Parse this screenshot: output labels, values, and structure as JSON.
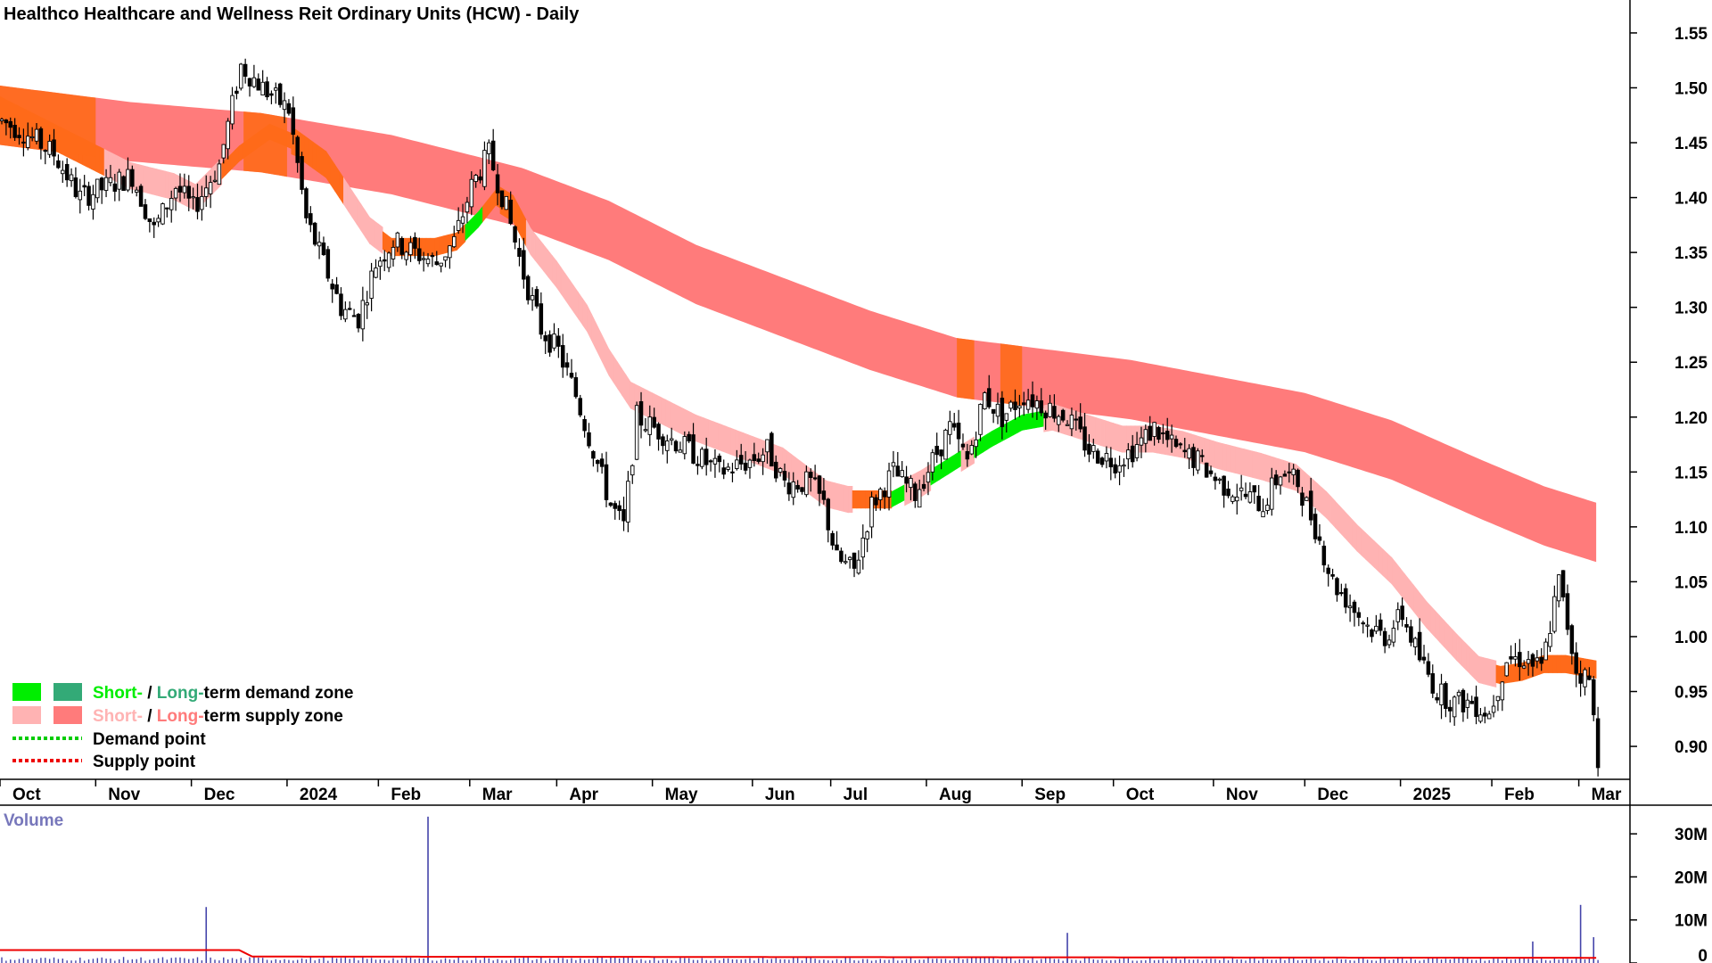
{
  "chart_data": {
    "type": "candlestick",
    "title": "Healthco Healthcare and Wellness Reit Ordinary Units (HCW) - Daily",
    "y_ticks": [
      "1.55",
      "1.50",
      "1.45",
      "1.40",
      "1.35",
      "1.30",
      "1.25",
      "1.20",
      "1.15",
      "1.10",
      "1.05",
      "1.00",
      "0.95",
      "0.90"
    ],
    "ylim": [
      0.87,
      1.58
    ],
    "x_ticks": [
      "Oct",
      "Nov",
      "Dec",
      "2024",
      "Feb",
      "Mar",
      "Apr",
      "May",
      "Jun",
      "Jul",
      "Aug",
      "Sep",
      "Oct",
      "Nov",
      "Dec",
      "2025",
      "Feb",
      "Mar"
    ],
    "x_tick_days": [
      0,
      22,
      44,
      66,
      87,
      108,
      128,
      150,
      173,
      191,
      213,
      235,
      256,
      279,
      300,
      322,
      343,
      363
    ],
    "price_path": [
      [
        0,
        1.47
      ],
      [
        5,
        1.46
      ],
      [
        12,
        1.44
      ],
      [
        18,
        1.4
      ],
      [
        24,
        1.41
      ],
      [
        30,
        1.42
      ],
      [
        35,
        1.37
      ],
      [
        40,
        1.41
      ],
      [
        44,
        1.39
      ],
      [
        50,
        1.43
      ],
      [
        55,
        1.52
      ],
      [
        60,
        1.5
      ],
      [
        66,
        1.48
      ],
      [
        70,
        1.38
      ],
      [
        74,
        1.34
      ],
      [
        78,
        1.3
      ],
      [
        82,
        1.29
      ],
      [
        86,
        1.34
      ],
      [
        90,
        1.36
      ],
      [
        95,
        1.35
      ],
      [
        100,
        1.34
      ],
      [
        104,
        1.36
      ],
      [
        108,
        1.41
      ],
      [
        112,
        1.44
      ],
      [
        116,
        1.39
      ],
      [
        120,
        1.33
      ],
      [
        124,
        1.28
      ],
      [
        128,
        1.26
      ],
      [
        132,
        1.22
      ],
      [
        136,
        1.17
      ],
      [
        140,
        1.12
      ],
      [
        143,
        1.1
      ],
      [
        146,
        1.2
      ],
      [
        150,
        1.19
      ],
      [
        158,
        1.17
      ],
      [
        165,
        1.15
      ],
      [
        172,
        1.16
      ],
      [
        176,
        1.17
      ],
      [
        180,
        1.14
      ],
      [
        186,
        1.14
      ],
      [
        189,
        1.12
      ],
      [
        192,
        1.07
      ],
      [
        196,
        1.06
      ],
      [
        200,
        1.12
      ],
      [
        205,
        1.15
      ],
      [
        210,
        1.13
      ],
      [
        214,
        1.16
      ],
      [
        218,
        1.19
      ],
      [
        222,
        1.16
      ],
      [
        226,
        1.22
      ],
      [
        230,
        1.2
      ],
      [
        235,
        1.22
      ],
      [
        240,
        1.21
      ],
      [
        245,
        1.2
      ],
      [
        250,
        1.17
      ],
      [
        256,
        1.16
      ],
      [
        260,
        1.17
      ],
      [
        265,
        1.19
      ],
      [
        270,
        1.17
      ],
      [
        275,
        1.16
      ],
      [
        280,
        1.14
      ],
      [
        285,
        1.13
      ],
      [
        290,
        1.12
      ],
      [
        294,
        1.15
      ],
      [
        298,
        1.14
      ],
      [
        302,
        1.1
      ],
      [
        306,
        1.05
      ],
      [
        310,
        1.03
      ],
      [
        314,
        1.01
      ],
      [
        318,
        1.0
      ],
      [
        322,
        1.02
      ],
      [
        326,
        0.98
      ],
      [
        330,
        0.95
      ],
      [
        334,
        0.94
      ],
      [
        338,
        0.94
      ],
      [
        342,
        0.93
      ],
      [
        346,
        0.98
      ],
      [
        350,
        0.98
      ],
      [
        354,
        0.97
      ],
      [
        358,
        1.05
      ],
      [
        362,
        0.97
      ],
      [
        365,
        0.96
      ],
      [
        367,
        0.89
      ]
    ],
    "short_band_path": [
      [
        0,
        1.48
      ],
      [
        10,
        1.46
      ],
      [
        20,
        1.44
      ],
      [
        30,
        1.42
      ],
      [
        40,
        1.41
      ],
      [
        45,
        1.4
      ],
      [
        55,
        1.44
      ],
      [
        62,
        1.46
      ],
      [
        68,
        1.45
      ],
      [
        75,
        1.43
      ],
      [
        80,
        1.4
      ],
      [
        85,
        1.37
      ],
      [
        90,
        1.355
      ],
      [
        100,
        1.355
      ],
      [
        105,
        1.36
      ],
      [
        110,
        1.38
      ],
      [
        114,
        1.4
      ],
      [
        118,
        1.39
      ],
      [
        122,
        1.36
      ],
      [
        128,
        1.33
      ],
      [
        135,
        1.29
      ],
      [
        140,
        1.25
      ],
      [
        145,
        1.22
      ],
      [
        150,
        1.21
      ],
      [
        160,
        1.19
      ],
      [
        170,
        1.175
      ],
      [
        180,
        1.16
      ],
      [
        190,
        1.13
      ],
      [
        195,
        1.125
      ],
      [
        205,
        1.125
      ],
      [
        212,
        1.14
      ],
      [
        220,
        1.16
      ],
      [
        228,
        1.18
      ],
      [
        235,
        1.195
      ],
      [
        242,
        1.2
      ],
      [
        250,
        1.19
      ],
      [
        258,
        1.18
      ],
      [
        265,
        1.18
      ],
      [
        272,
        1.175
      ],
      [
        280,
        1.165
      ],
      [
        290,
        1.155
      ],
      [
        298,
        1.145
      ],
      [
        305,
        1.12
      ],
      [
        312,
        1.09
      ],
      [
        320,
        1.06
      ],
      [
        328,
        1.02
      ],
      [
        335,
        0.99
      ],
      [
        340,
        0.97
      ],
      [
        345,
        0.965
      ],
      [
        350,
        0.968
      ],
      [
        355,
        0.975
      ],
      [
        360,
        0.975
      ],
      [
        367,
        0.97
      ]
    ],
    "long_band_path": [
      [
        0,
        1.475
      ],
      [
        30,
        1.46
      ],
      [
        60,
        1.45
      ],
      [
        90,
        1.43
      ],
      [
        110,
        1.41
      ],
      [
        120,
        1.4
      ],
      [
        140,
        1.37
      ],
      [
        160,
        1.33
      ],
      [
        180,
        1.3
      ],
      [
        200,
        1.27
      ],
      [
        220,
        1.245
      ],
      [
        240,
        1.235
      ],
      [
        260,
        1.225
      ],
      [
        280,
        1.21
      ],
      [
        300,
        1.195
      ],
      [
        320,
        1.17
      ],
      [
        340,
        1.135
      ],
      [
        355,
        1.11
      ],
      [
        367,
        1.095
      ]
    ],
    "volume_label": "Volume",
    "volume_ticks": [
      "30M",
      "20M",
      "10M",
      "0"
    ],
    "volume_ylim": [
      0,
      35
    ],
    "volume_spikes": [
      [
        47,
        13
      ],
      [
        98,
        34
      ],
      [
        245,
        7
      ],
      [
        352,
        5
      ],
      [
        363,
        13.5
      ],
      [
        366,
        6
      ]
    ],
    "volume_baseline": 1.0,
    "volume_avg_path": [
      [
        0,
        3.0
      ],
      [
        55,
        3.0
      ],
      [
        58,
        1.5
      ],
      [
        367,
        1.2
      ]
    ],
    "legend": [
      {
        "label_short": "Short-",
        "sep": " / ",
        "label_long": "Long-",
        "rest": "term demand zone",
        "short_color": "#00ee00",
        "long_color": "#33aa77"
      },
      {
        "label_short": "Short-",
        "sep": " / ",
        "label_long": "Long-",
        "rest": "term supply zone",
        "short_color": "#ffb3b3",
        "long_color": "#ff7b7b"
      },
      {
        "label": "Demand point",
        "color": "#00cc00"
      },
      {
        "label": "Supply point",
        "color": "#ee0000"
      }
    ],
    "colors": {
      "candle": "#000000",
      "short_supply": "#ffb3b3",
      "long_supply": "#ff7b7b",
      "short_demand": "#00ee00",
      "overlap": "#ff6a1a",
      "volume_bar": "#4444aa",
      "volume_avg": "#ee0000"
    }
  }
}
